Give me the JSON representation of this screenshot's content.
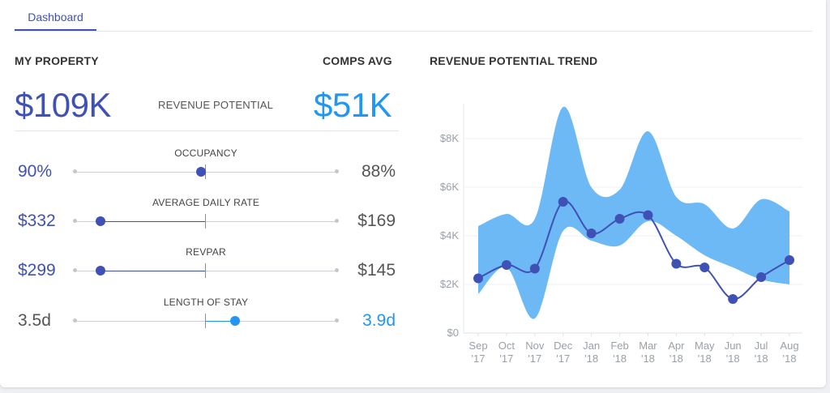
{
  "tabs": [
    {
      "label": "Dashboard",
      "active": true
    }
  ],
  "left": {
    "my_property_label": "MY PROPERTY",
    "comps_avg_label": "COMPS AVG",
    "my_value": "$109K",
    "middle_label": "REVENUE POTENTIAL",
    "comps_value": "$51K",
    "metrics": [
      {
        "label": "OCCUPANCY",
        "left": "90%",
        "right": "88%",
        "left_color": "#3f51b5",
        "right_color": "#555555",
        "knob_position_pct": 48,
        "knob_color": "#3f51b5"
      },
      {
        "label": "AVERAGE DAILY RATE",
        "left": "$332",
        "right": "$169",
        "left_color": "#3f51b5",
        "right_color": "#555555",
        "knob_position_pct": 10,
        "knob_color": "#3f51b5"
      },
      {
        "label": "REVPAR",
        "left": "$299",
        "right": "$145",
        "left_color": "#3f51b5",
        "right_color": "#555555",
        "knob_position_pct": 10,
        "knob_color": "#3f51b5"
      },
      {
        "label": "LENGTH OF STAY",
        "left": "3.5d",
        "right": "3.9d",
        "left_color": "#555555",
        "right_color": "#2196f3",
        "knob_position_pct": 61,
        "knob_color": "#2196f3"
      }
    ]
  },
  "right": {
    "title": "REVENUE POTENTIAL TREND"
  },
  "colors": {
    "accent": "#3f51b5",
    "comps": "#2196f3",
    "band": "#64b5f6",
    "muted": "#555555"
  },
  "chart_data": {
    "type": "area",
    "title": "REVENUE POTENTIAL TREND",
    "x": [
      "Sep '17",
      "Oct '17",
      "Nov '17",
      "Dec '17",
      "Jan '18",
      "Feb '18",
      "Mar '18",
      "Apr '18",
      "May '18",
      "Jun '18",
      "Jul '18",
      "Aug '18"
    ],
    "x_top": [
      "Sep",
      "Oct",
      "Nov",
      "Dec",
      "Jan",
      "Feb",
      "Mar",
      "Apr",
      "May",
      "Jun",
      "Jul",
      "Aug"
    ],
    "x_bottom": [
      "'17",
      "'17",
      "'17",
      "'17",
      "'18",
      "'18",
      "'18",
      "'18",
      "'18",
      "'18",
      "'18",
      "'18"
    ],
    "y_ticks": [
      "$0",
      "$2K",
      "$4K",
      "$6K",
      "$8K"
    ],
    "y_tick_values": [
      0,
      2000,
      4000,
      6000,
      8000
    ],
    "ylim": [
      0,
      9500
    ],
    "grid": true,
    "series": [
      {
        "type": "band",
        "upper": [
          4400,
          4900,
          4700,
          9300,
          6000,
          5900,
          8300,
          5600,
          5300,
          4300,
          5500,
          5000
        ],
        "lower": [
          1600,
          2700,
          600,
          4200,
          3800,
          3600,
          4600,
          4000,
          3200,
          2700,
          2200,
          2000
        ]
      },
      {
        "type": "line",
        "values": [
          2250,
          2800,
          2650,
          5400,
          4100,
          4700,
          4850,
          2850,
          2700,
          1400,
          2300,
          3000
        ]
      }
    ]
  }
}
